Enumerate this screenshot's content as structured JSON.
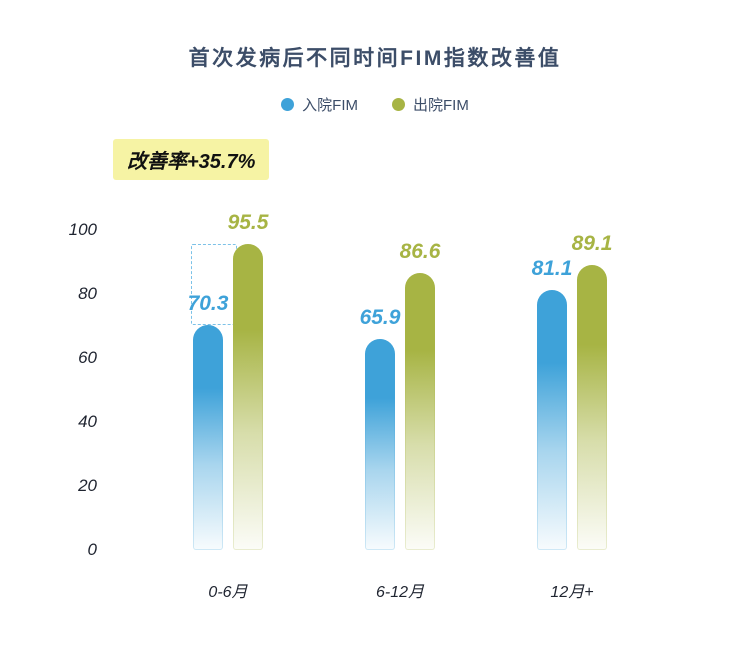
{
  "title": "首次发病后不同时间FIM指数改善值",
  "legend": [
    {
      "label": "入院FIM",
      "color": "#3ea2d9"
    },
    {
      "label": "出院FIM",
      "color": "#a7b444"
    }
  ],
  "annotation": {
    "text": "改善率+35.7%",
    "bg": "#f6f3a4"
  },
  "chart_data": {
    "type": "bar",
    "title": "首次发病后不同时间FIM指数改善值",
    "categories": [
      "0-6月",
      "6-12月",
      "12月+"
    ],
    "series": [
      {
        "name": "入院FIM",
        "color": "#3ea2d9",
        "values": [
          70.3,
          65.9,
          81.1
        ]
      },
      {
        "name": "出院FIM",
        "color": "#a7b444",
        "values": [
          95.5,
          86.6,
          89.1
        ]
      }
    ],
    "xlabel": "",
    "ylabel": "",
    "ylim": [
      0,
      100
    ],
    "yticks": [
      0,
      20,
      40,
      60,
      80,
      100
    ],
    "grid": false,
    "legend_position": "top",
    "gap_marker": {
      "category_index": 0,
      "from_series": 0,
      "to_series": 1,
      "style": "dashed"
    }
  }
}
